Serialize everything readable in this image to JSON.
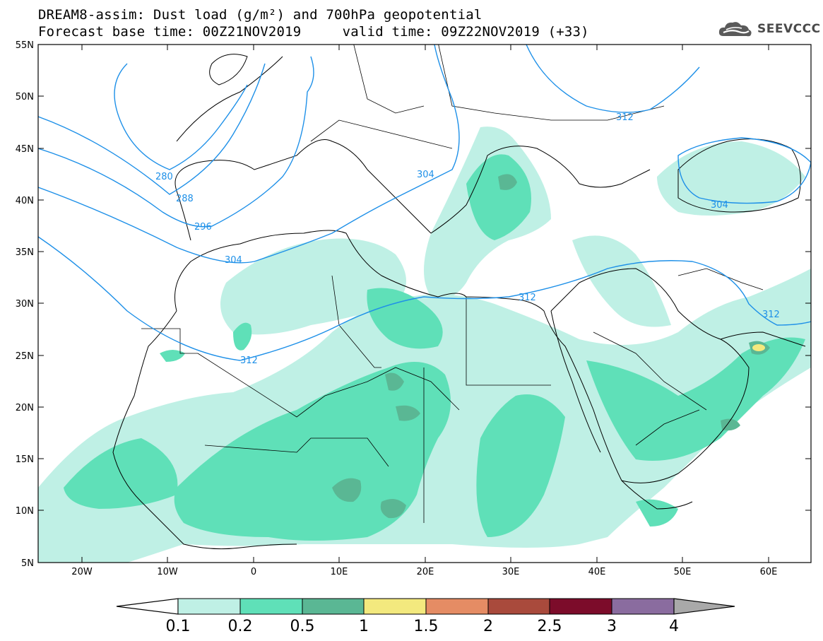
{
  "header": {
    "title_line1": "DREAM8-assim: Dust load (g/m²) and 700hPa geopotential",
    "title_line2": "Forecast base time: 00Z21NOV2019     valid time: 09Z22NOV2019 (+33)"
  },
  "logo": {
    "text": "SEEVCCC",
    "icon": "cloud-logo-icon"
  },
  "map": {
    "lat_labels": [
      "55N",
      "50N",
      "45N",
      "40N",
      "35N",
      "30N",
      "25N",
      "20N",
      "15N",
      "10N",
      "5N"
    ],
    "lon_labels": [
      "20W",
      "10W",
      "0",
      "10E",
      "20E",
      "30E",
      "40E",
      "50E",
      "60E"
    ],
    "contour_labels": [
      "280",
      "288",
      "296",
      "304",
      "304",
      "312",
      "312",
      "312",
      "312",
      "304"
    ],
    "colors": {
      "contour": "#1e90e8",
      "coast": "#000000",
      "frame": "#000000"
    }
  },
  "colorbar": {
    "levels": [
      "0.1",
      "0.2",
      "0.5",
      "1",
      "1.5",
      "2",
      "2.5",
      "3",
      "4"
    ],
    "colors": [
      "#ffffff",
      "#bff0e5",
      "#5fe0b8",
      "#5ab794",
      "#f3e97e",
      "#e58c64",
      "#a94a3c",
      "#7c0c2a",
      "#8a6c9f",
      "#a9a9a9"
    ]
  }
}
